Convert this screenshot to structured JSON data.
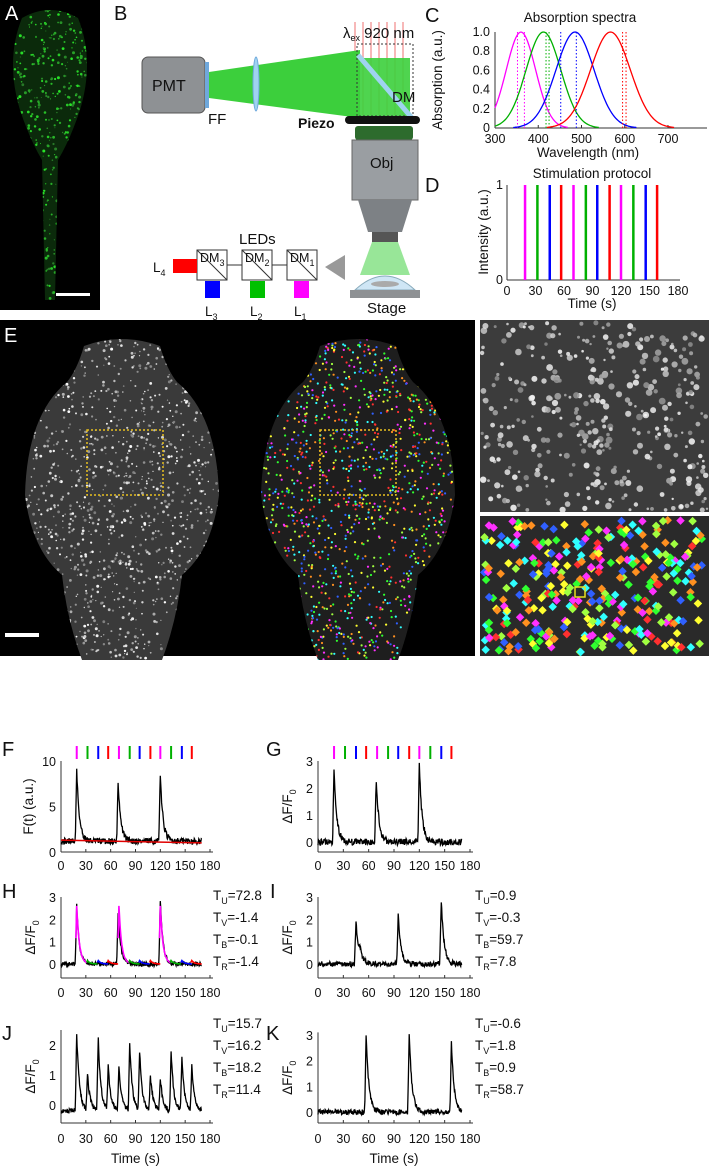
{
  "panels": {
    "A": "A",
    "B": "B",
    "C": "C",
    "D": "D",
    "E": "E",
    "F": "F",
    "G": "G",
    "H": "H",
    "I": "I",
    "J": "J",
    "K": "K"
  },
  "colors": {
    "U": "#ff00ff",
    "V": "#00b000",
    "B": "#0000ff",
    "R": "#ff0000",
    "trace": "#000000",
    "baseline": "#e00000",
    "roi_box": "#e8c020",
    "gcamp": "#22c022"
  },
  "setup": {
    "pmt": "PMT",
    "ff": "FF",
    "dm": "DM",
    "piezo": "Piezo",
    "obj": "Obj",
    "stage": "Stage",
    "leds": "LEDs",
    "laser": {
      "sym": "λ",
      "sub": "ex",
      "val": " 920 nm"
    },
    "dms": [
      {
        "sym": "DM",
        "sub": "3"
      },
      {
        "sym": "DM",
        "sub": "2"
      },
      {
        "sym": "DM",
        "sub": "1"
      }
    ],
    "leds_list": [
      {
        "sym": "L",
        "sub": "4",
        "color": "#ff0000"
      },
      {
        "sym": "L",
        "sub": "3",
        "color": "#0000ff"
      },
      {
        "sym": "L",
        "sub": "2",
        "color": "#00c000"
      },
      {
        "sym": "L",
        "sub": "1",
        "color": "#ff00ff"
      }
    ]
  },
  "chart_data": [
    {
      "id": "C",
      "type": "line",
      "title": "Absorption spectra",
      "xlabel": "Wavelength (nm)",
      "ylabel": "Absorption (a.u.)",
      "xlim": [
        300,
        740
      ],
      "ylim": [
        0,
        1
      ],
      "xticks": [
        "300",
        "400",
        "500",
        "600",
        "700"
      ],
      "yticks": [
        "0",
        "0.2",
        "0.4",
        "0.6",
        "0.8",
        "1.0"
      ],
      "series": [
        {
          "color": "#ff00ff",
          "peak_nm": 360,
          "width_nm": 34,
          "band_nm": [
            352,
            368
          ]
        },
        {
          "color": "#00b000",
          "peak_nm": 412,
          "width_nm": 40,
          "band_nm": [
            418,
            425
          ]
        },
        {
          "color": "#0000ff",
          "peak_nm": 485,
          "width_nm": 44,
          "band_nm": [
            452,
            488
          ]
        },
        {
          "color": "#ff0000",
          "peak_nm": 567,
          "width_nm": 46,
          "band_nm": [
            595,
            603
          ]
        }
      ]
    },
    {
      "id": "D",
      "type": "bar",
      "title": "Stimulation protocol",
      "xlabel": "Time (s)",
      "ylabel": "Intensity (a.u.)",
      "xlim": [
        0,
        180
      ],
      "ylim": [
        0,
        1
      ],
      "xticks": [
        "0",
        "30",
        "60",
        "90",
        "120",
        "150",
        "180"
      ],
      "yticks": [
        "0",
        "1"
      ],
      "stimuli": [
        {
          "t": 19,
          "color": "U"
        },
        {
          "t": 32,
          "color": "V"
        },
        {
          "t": 45,
          "color": "B"
        },
        {
          "t": 57,
          "color": "R"
        },
        {
          "t": 70,
          "color": "U"
        },
        {
          "t": 83,
          "color": "V"
        },
        {
          "t": 95,
          "color": "B"
        },
        {
          "t": 108,
          "color": "R"
        },
        {
          "t": 120,
          "color": "U"
        },
        {
          "t": 133,
          "color": "V"
        },
        {
          "t": 146,
          "color": "B"
        },
        {
          "t": 158,
          "color": "R"
        }
      ],
      "values": [
        1,
        1,
        1,
        1,
        1,
        1,
        1,
        1,
        1,
        1,
        1,
        1
      ]
    },
    {
      "id": "F",
      "type": "line",
      "ylabel": "F(t) (a.u.)",
      "xlim": [
        0,
        180
      ],
      "ylim": [
        0,
        10
      ],
      "xticks": [
        "0",
        "30",
        "60",
        "90",
        "120",
        "150",
        "180"
      ],
      "yticks": [
        "0",
        "5",
        "10"
      ],
      "stim_markers": true,
      "baseline_level": 1.2,
      "noise": 0.35,
      "peaks": [
        {
          "t": 19,
          "value": 9.0
        },
        {
          "t": 69,
          "value": 7.8
        },
        {
          "t": 120,
          "value": 8.5
        }
      ],
      "baseline_fit": [
        1.3,
        1.0
      ]
    },
    {
      "id": "G",
      "type": "line",
      "ylabel": {
        "sym": "ΔF/F",
        "sub": "0"
      },
      "xlim": [
        0,
        180
      ],
      "ylim": [
        -0.4,
        3
      ],
      "xticks": [
        "0",
        "30",
        "60",
        "90",
        "120",
        "150",
        "180"
      ],
      "yticks": [
        "0",
        "1",
        "2",
        "3"
      ],
      "stim_markers": true,
      "baseline_level": 0,
      "noise": 0.12,
      "peaks": [
        {
          "t": 19,
          "value": 2.6
        },
        {
          "t": 69,
          "value": 2.3
        },
        {
          "t": 120,
          "value": 2.85
        }
      ]
    },
    {
      "id": "H",
      "type": "line",
      "ylabel": {
        "sym": "ΔF/F",
        "sub": "0"
      },
      "xlim": [
        0,
        180
      ],
      "ylim": [
        -0.6,
        3
      ],
      "xticks": [
        "0",
        "30",
        "60",
        "90",
        "120",
        "150",
        "180"
      ],
      "yticks": [
        "0",
        "1",
        "2",
        "3"
      ],
      "baseline_level": 0,
      "noise": 0.1,
      "peaks": [
        {
          "t": 19,
          "value": 2.6
        },
        {
          "t": 69,
          "value": 2.35
        },
        {
          "t": 120,
          "value": 2.85
        }
      ],
      "fit": "U",
      "stats": [
        {
          "sym": "T",
          "sub": "U",
          "val": "=72.8"
        },
        {
          "sym": "T",
          "sub": "V",
          "val": "=-1.4"
        },
        {
          "sym": "T",
          "sub": "B",
          "val": "=-0.1"
        },
        {
          "sym": "T",
          "sub": "R",
          "val": "=-1.4"
        }
      ]
    },
    {
      "id": "I",
      "type": "line",
      "ylabel": {
        "sym": "ΔF/F",
        "sub": "0"
      },
      "xlim": [
        0,
        180
      ],
      "ylim": [
        -0.6,
        3
      ],
      "xticks": [
        "0",
        "30",
        "60",
        "90",
        "120",
        "150",
        "180"
      ],
      "yticks": [
        "0",
        "1",
        "2",
        "3"
      ],
      "baseline_level": 0,
      "noise": 0.12,
      "peaks": [
        {
          "t": 45,
          "value": 2.0
        },
        {
          "t": 50,
          "value": 0.4
        },
        {
          "t": 95,
          "value": 2.2
        },
        {
          "t": 146,
          "value": 2.85
        }
      ],
      "stats": [
        {
          "sym": "T",
          "sub": "U",
          "val": "=0.9"
        },
        {
          "sym": "T",
          "sub": "V",
          "val": "=-0.3"
        },
        {
          "sym": "T",
          "sub": "B",
          "val": "=59.7"
        },
        {
          "sym": "T",
          "sub": "R",
          "val": "=7.8"
        }
      ]
    },
    {
      "id": "J",
      "type": "line",
      "xlabel": "Time (s)",
      "ylabel": {
        "sym": "ΔF/F",
        "sub": "0"
      },
      "xlim": [
        0,
        180
      ],
      "ylim": [
        -0.6,
        2.5
      ],
      "xticks": [
        "0",
        "30",
        "60",
        "90",
        "120",
        "150",
        "180"
      ],
      "yticks": [
        "0",
        "1",
        "2"
      ],
      "baseline_level": -0.2,
      "noise": 0.08,
      "peaks": [
        {
          "t": 19,
          "value": 2.4
        },
        {
          "t": 32,
          "value": 1.0
        },
        {
          "t": 45,
          "value": 2.2
        },
        {
          "t": 57,
          "value": 1.25
        },
        {
          "t": 70,
          "value": 1.3
        },
        {
          "t": 83,
          "value": 2.0
        },
        {
          "t": 95,
          "value": 1.7
        },
        {
          "t": 108,
          "value": 0.95
        },
        {
          "t": 120,
          "value": 0.85
        },
        {
          "t": 133,
          "value": 1.75
        },
        {
          "t": 146,
          "value": 1.5
        },
        {
          "t": 158,
          "value": 1.25
        }
      ],
      "stats": [
        {
          "sym": "T",
          "sub": "U",
          "val": "=15.7"
        },
        {
          "sym": "T",
          "sub": "V",
          "val": "=16.2"
        },
        {
          "sym": "T",
          "sub": "B",
          "val": "=18.2"
        },
        {
          "sym": "T",
          "sub": "R",
          "val": "=11.4"
        }
      ]
    },
    {
      "id": "K",
      "type": "line",
      "xlabel": "Time (s)",
      "ylabel": {
        "sym": "ΔF/F",
        "sub": "0"
      },
      "xlim": [
        0,
        180
      ],
      "ylim": [
        -0.4,
        3.1
      ],
      "xticks": [
        "0",
        "30",
        "60",
        "90",
        "120",
        "150",
        "180"
      ],
      "yticks": [
        "0",
        "1",
        "2",
        "3"
      ],
      "baseline_level": 0,
      "noise": 0.1,
      "peaks": [
        {
          "t": 57,
          "value": 3.0
        },
        {
          "t": 108,
          "value": 3.1
        },
        {
          "t": 158,
          "value": 2.7
        }
      ],
      "stats": [
        {
          "sym": "T",
          "sub": "U",
          "val": "=-0.6"
        },
        {
          "sym": "T",
          "sub": "V",
          "val": "=1.8"
        },
        {
          "sym": "T",
          "sub": "B",
          "val": "=0.9"
        },
        {
          "sym": "T",
          "sub": "R",
          "val": "=58.7"
        }
      ]
    }
  ]
}
